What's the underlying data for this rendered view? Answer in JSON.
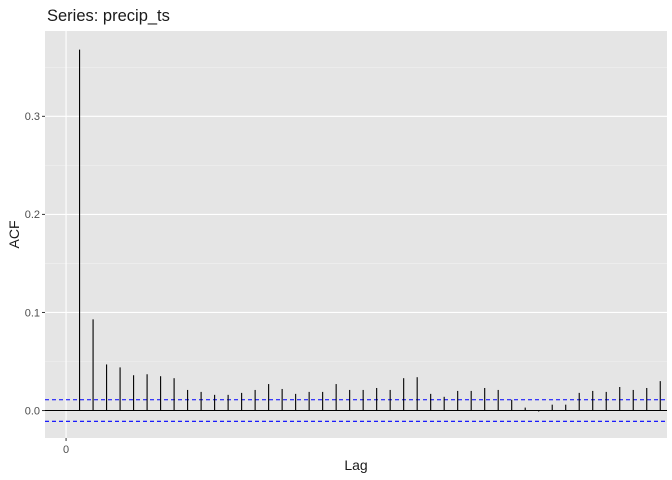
{
  "chart_data": {
    "type": "bar",
    "title": "Series: precip_ts",
    "xlabel": "Lag",
    "ylabel": "ACF",
    "x_tick_labels": [
      "0"
    ],
    "x_ticks": [
      0
    ],
    "y_ticks": [
      0.0,
      0.1,
      0.2,
      0.3
    ],
    "y_tick_labels": [
      "0.0",
      "0.1",
      "0.2",
      "0.3"
    ],
    "xlim": [
      -1.56,
      44.5
    ],
    "ylim": [
      -0.028,
      0.387
    ],
    "grid": true,
    "legend": "none",
    "zero_line_color": "#000000",
    "bar_color": "#000000",
    "ci_color": "#0000ff",
    "ci_bounds": [
      0.011,
      -0.011
    ],
    "lags": [
      1,
      2,
      3,
      4,
      5,
      6,
      7,
      8,
      9,
      10,
      11,
      12,
      13,
      14,
      15,
      16,
      17,
      18,
      19,
      20,
      21,
      22,
      23,
      24,
      25,
      26,
      27,
      28,
      29,
      30,
      31,
      32,
      33,
      34,
      35,
      36,
      37,
      38,
      39,
      40,
      41,
      42,
      43,
      44,
      45
    ],
    "acf": [
      0.368,
      0.093,
      0.047,
      0.044,
      0.036,
      0.037,
      0.035,
      0.033,
      0.021,
      0.019,
      0.016,
      0.016,
      0.018,
      0.021,
      0.027,
      0.022,
      0.017,
      0.019,
      0.019,
      0.027,
      0.021,
      0.021,
      0.023,
      0.021,
      0.033,
      0.034,
      0.017,
      0.014,
      0.02,
      0.02,
      0.023,
      0.021,
      0.011,
      0.003,
      -0.001,
      0.006,
      0.006,
      0.018,
      0.02,
      0.019,
      0.024,
      0.021,
      0.023,
      0.03,
      0.029
    ]
  },
  "colors": {
    "panel_bg": "#e5e5e5",
    "grid_major": "#ffffff",
    "grid_minor": "#f2f2f2"
  }
}
